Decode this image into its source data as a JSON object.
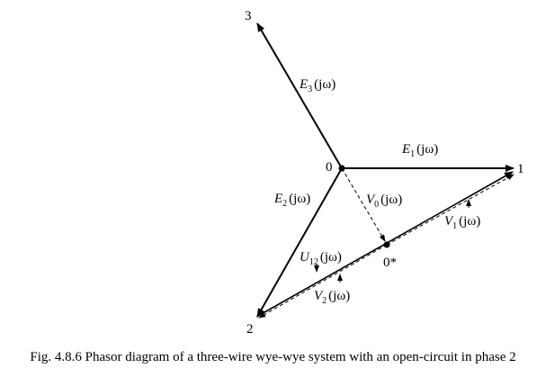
{
  "nodes": {
    "center": "0",
    "phase1": "1",
    "phase2": "2",
    "phase3": "3",
    "shifted_neutral": "0*"
  },
  "labels": {
    "E1": {
      "letter": "E",
      "sub": "1",
      "arg": "(jω)"
    },
    "E2": {
      "letter": "E",
      "sub": "2",
      "arg": "(jω)"
    },
    "E3": {
      "letter": "E",
      "sub": "3",
      "arg": "(jω)"
    },
    "V0": {
      "letter": "V",
      "sub": "0",
      "arg": "(jω)"
    },
    "V1": {
      "letter": "V",
      "sub": "1",
      "arg": "(jω)"
    },
    "V2": {
      "letter": "V",
      "sub": "2",
      "arg": "(jω)"
    },
    "U12": {
      "letter": "U",
      "sub": "12",
      "arg": "(jω)"
    }
  },
  "caption": "Fig. 4.8.6 Phasor diagram of a three-wire wye-wye system with an open-circuit in phase 2"
}
